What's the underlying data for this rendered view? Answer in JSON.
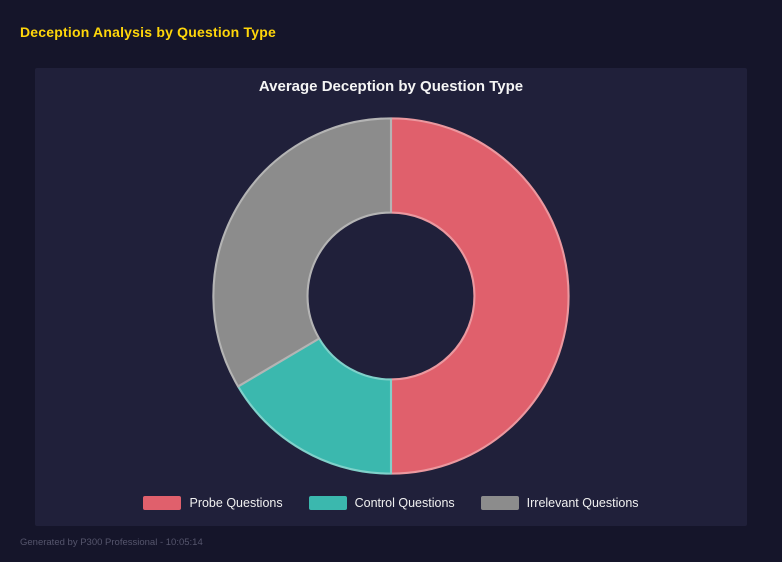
{
  "header": {
    "title": "Deception Analysis by Question Type"
  },
  "footer": {
    "text": "Generated by P300 Professional - 10:05:14"
  },
  "chart_data": {
    "type": "pie",
    "subtype": "donut",
    "title": "Average Deception by Question Type",
    "categories": [
      "Probe Questions",
      "Control Questions",
      "Irrelevant Questions"
    ],
    "values": [
      50,
      16.5,
      33.5
    ],
    "values_unit": "percent_of_circle",
    "colors": [
      "#e0606c",
      "#3bb8ae",
      "#8c8c8c"
    ],
    "inner_radius_ratio": 0.47,
    "start_angle_deg": 0,
    "direction": "clockwise",
    "legend_position": "bottom",
    "legend_entries": [
      "Probe Questions",
      "Control Questions",
      "Irrelevant Questions"
    ]
  },
  "colors": {
    "page_bg": "#15152a",
    "panel_bg": "#20203a",
    "title_yellow": "#ffd60a",
    "chart_title_text": "#f5f5f5",
    "legend_text": "#f0f0f0",
    "footer_text": "#55556c"
  }
}
